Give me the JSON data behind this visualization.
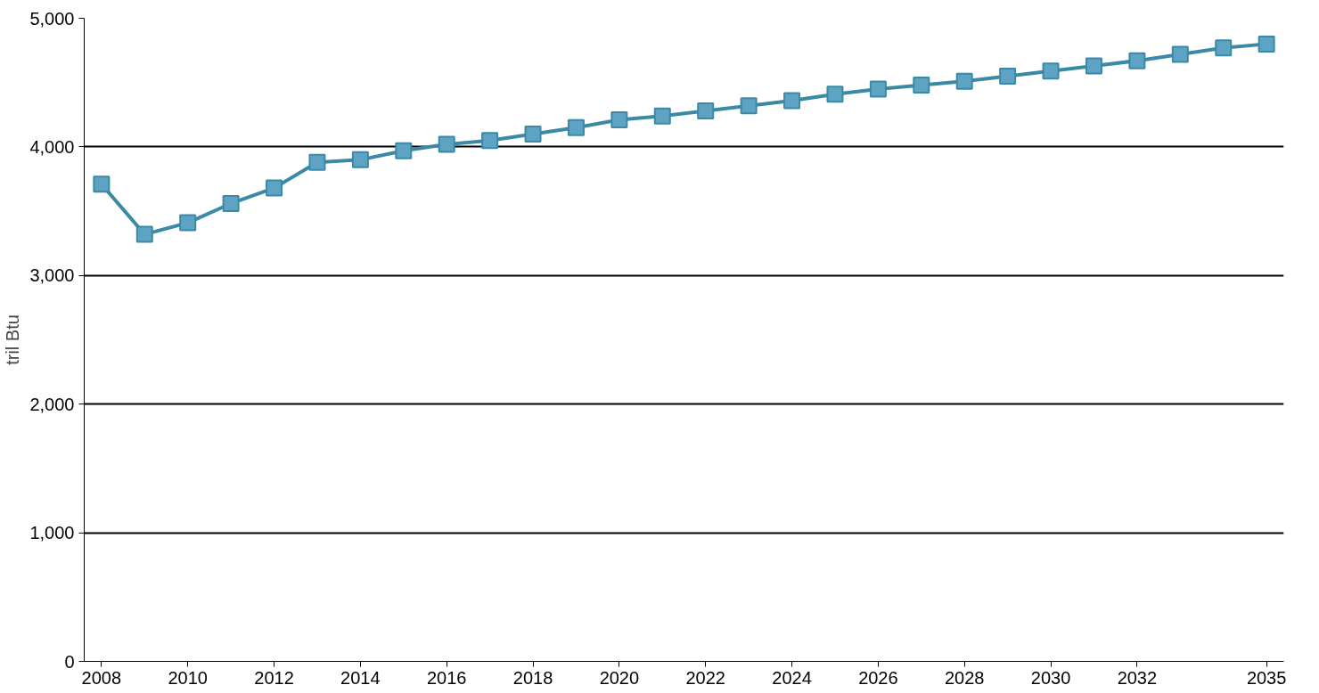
{
  "chart_data": {
    "type": "line",
    "ylabel": "tril Btu",
    "x": [
      2008,
      2009,
      2010,
      2011,
      2012,
      2013,
      2014,
      2015,
      2016,
      2017,
      2018,
      2019,
      2020,
      2021,
      2022,
      2023,
      2024,
      2025,
      2026,
      2027,
      2028,
      2029,
      2030,
      2031,
      2032,
      2033,
      2034,
      2035
    ],
    "series": [
      {
        "color": "#3a8aa5",
        "values": [
          3710,
          3320,
          3410,
          3560,
          3680,
          3880,
          3900,
          3970,
          4020,
          4050,
          4100,
          4150,
          4210,
          4240,
          4280,
          4320,
          4360,
          4410,
          4450,
          4480,
          4510,
          4550,
          4590,
          4630,
          4670,
          4720,
          4770,
          4800
        ]
      }
    ],
    "xlim": [
      2007.6,
      2035.4
    ],
    "xticks": [
      2008,
      2010,
      2012,
      2014,
      2016,
      2018,
      2020,
      2022,
      2024,
      2026,
      2028,
      2030,
      2032,
      2035
    ],
    "ylim": [
      0,
      5000
    ],
    "yticks": [
      0,
      {
        "value": 1000,
        "label": "1,000"
      },
      {
        "value": 2000,
        "label": "2,000"
      },
      {
        "value": 3000,
        "label": "3,000"
      },
      {
        "value": 4000,
        "label": "4,000"
      },
      {
        "value": 5000,
        "label": "5,000"
      }
    ],
    "grid": "y",
    "marker": "square",
    "line_style": "solid"
  }
}
